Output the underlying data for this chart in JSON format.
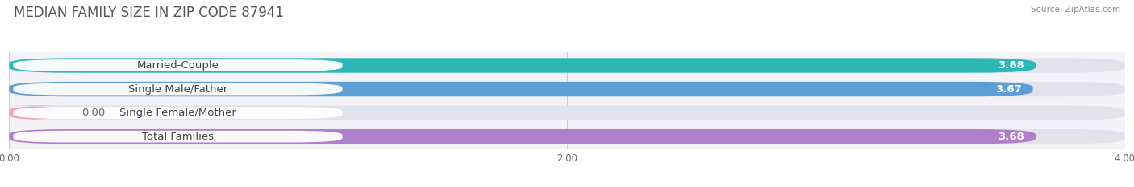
{
  "title": "MEDIAN FAMILY SIZE IN ZIP CODE 87941",
  "source": "Source: ZipAtlas.com",
  "categories": [
    "Married-Couple",
    "Single Male/Father",
    "Single Female/Mother",
    "Total Families"
  ],
  "values": [
    3.68,
    3.67,
    0.0,
    3.68
  ],
  "bar_colors": [
    "#2db8b8",
    "#5b9fd6",
    "#f4a0b5",
    "#b07fcc"
  ],
  "xlim": [
    0,
    4.0
  ],
  "xticks": [
    0.0,
    2.0,
    4.0
  ],
  "xtick_labels": [
    "0.00",
    "2.00",
    "4.00"
  ],
  "bar_height": 0.62,
  "background_color": "#f2f2f7",
  "bar_background_color": "#e2e2ea",
  "label_fontsize": 9.5,
  "value_fontsize": 9.5,
  "title_fontsize": 12,
  "title_color": "#555555",
  "source_color": "#888888",
  "label_color": "#444444",
  "value_color_inside": "#ffffff",
  "value_color_outside": "#666666"
}
